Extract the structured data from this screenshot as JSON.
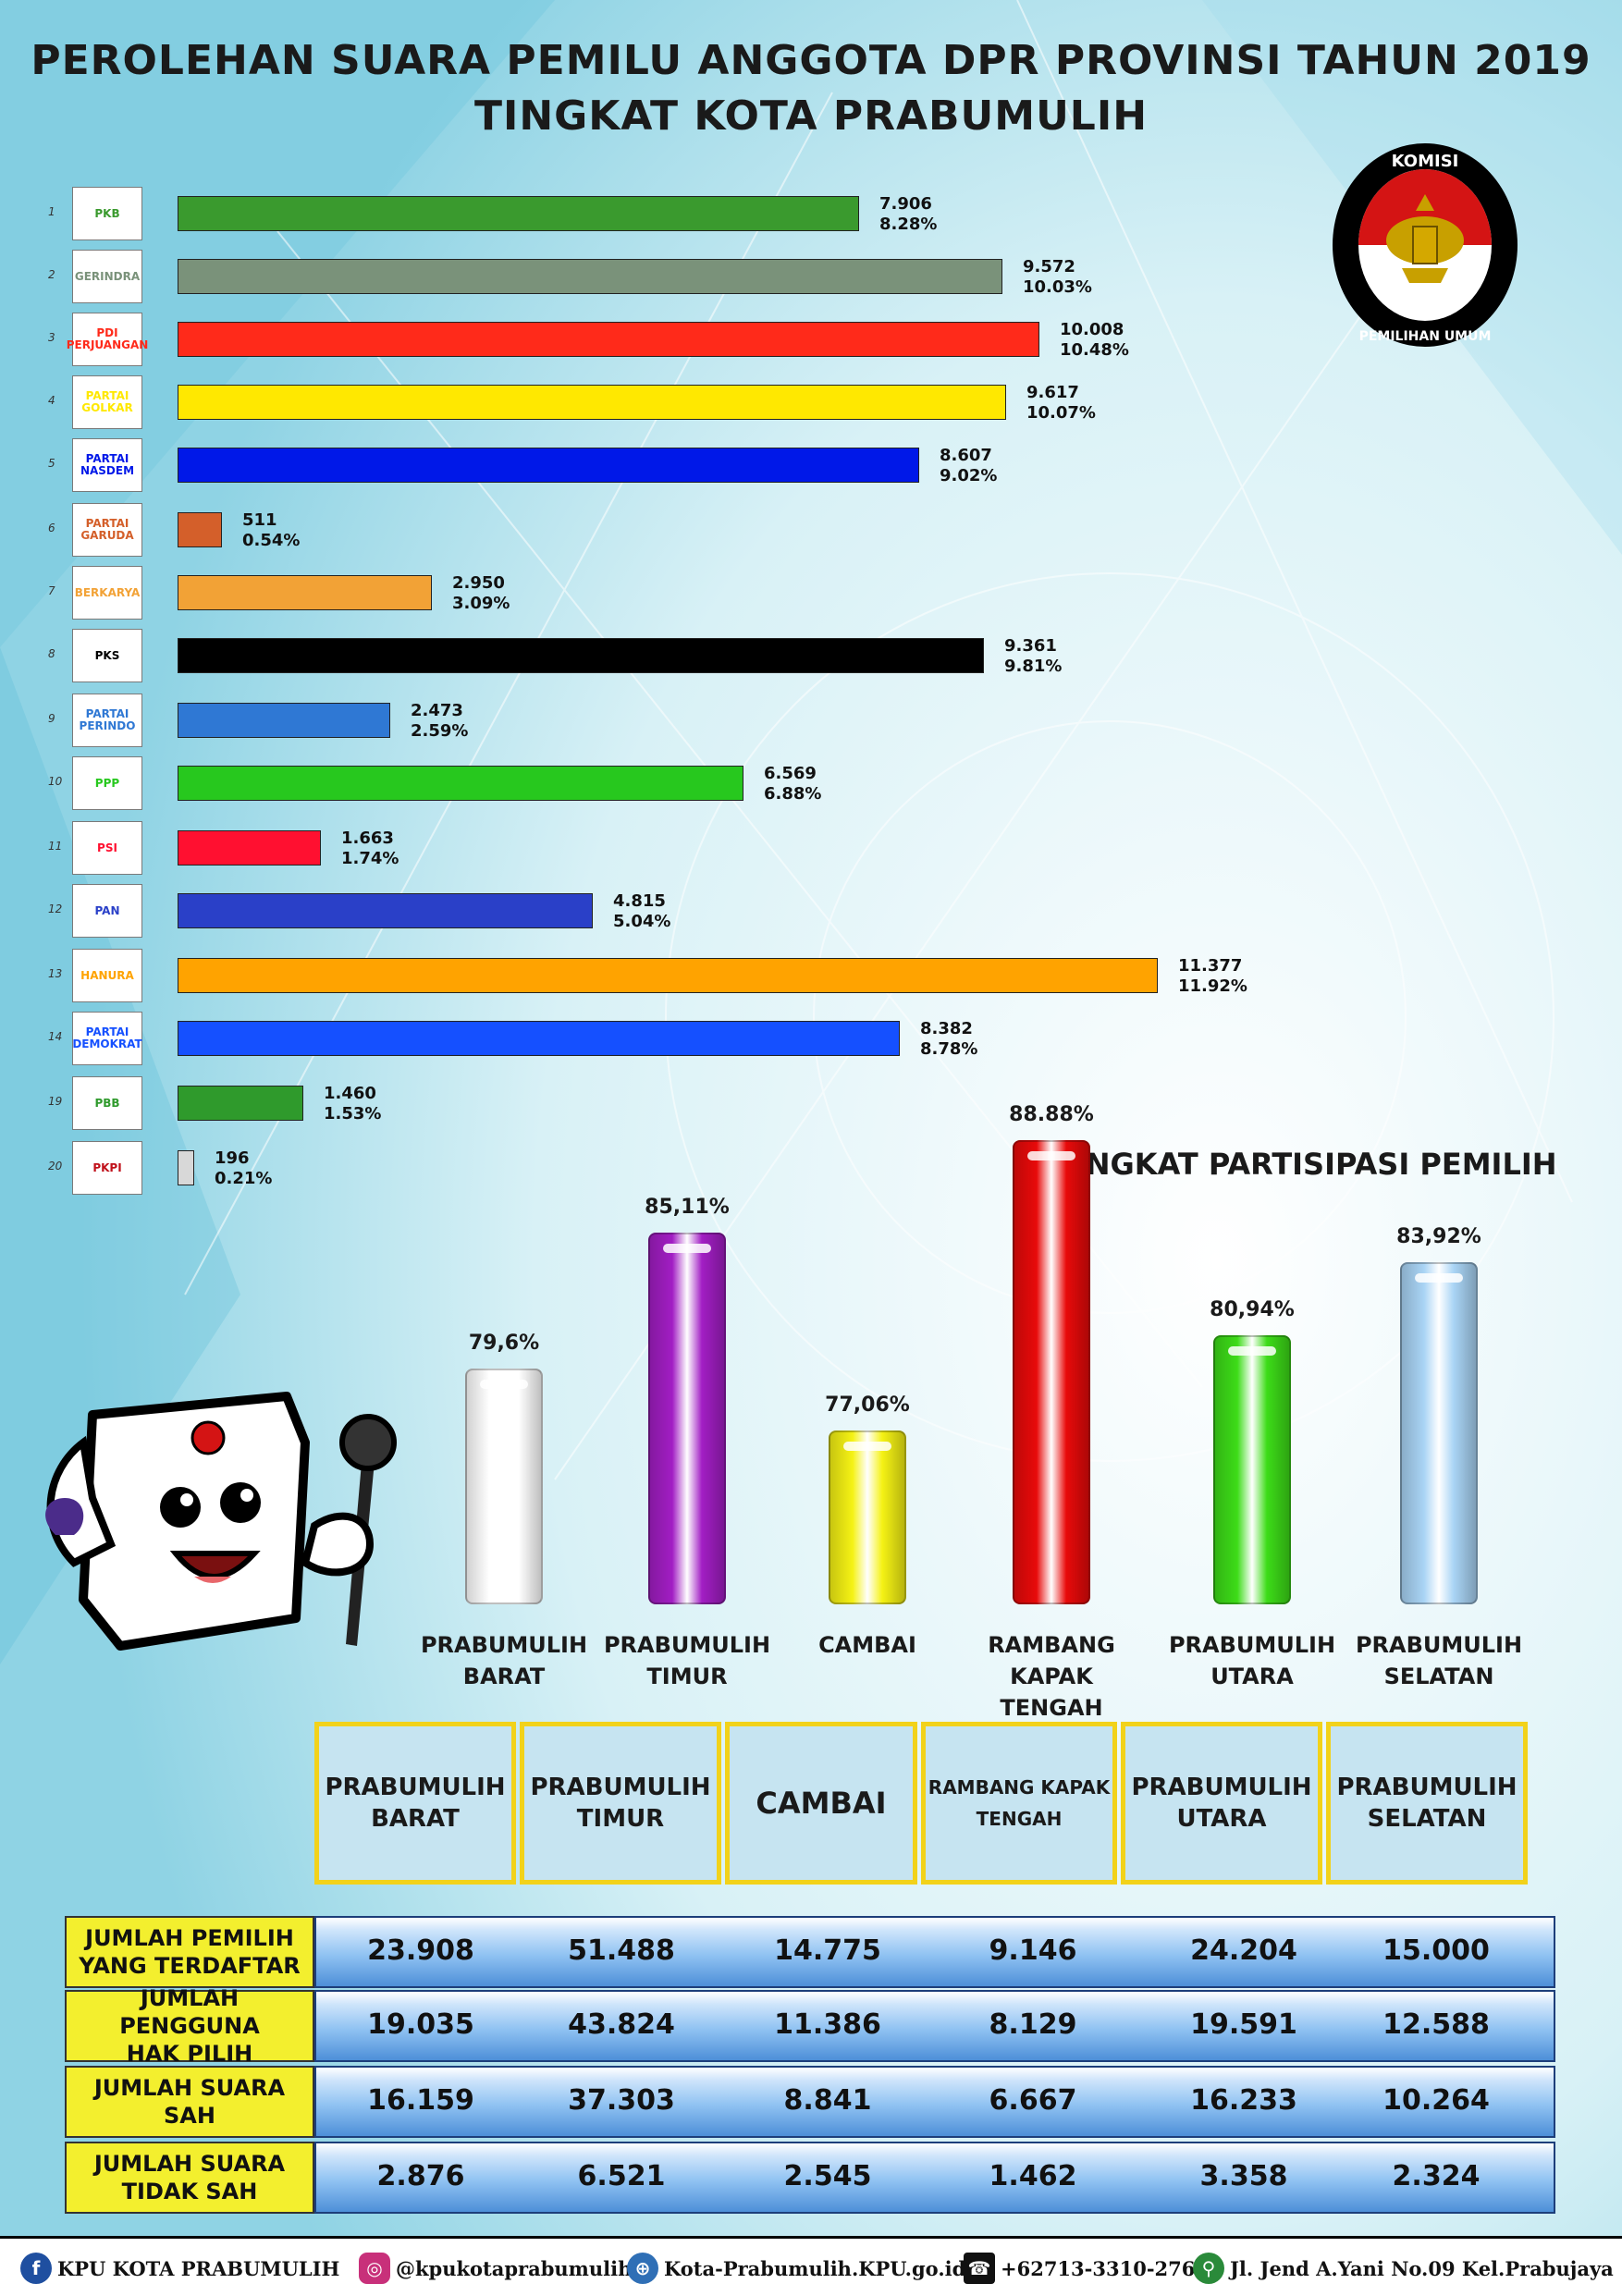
{
  "header": {
    "title_line1": "PEROLEHAN SUARA PEMILU ANGGOTA DPR PROVINSI TAHUN 2019",
    "title_line2": "TINGKAT KOTA PRABUMULIH"
  },
  "kpu_logo": {
    "top_text": "KOMISI",
    "bottom_text": "PEMILIHAN UMUM"
  },
  "chart_data": [
    {
      "type": "bar",
      "orientation": "horizontal",
      "title": "",
      "categories": [
        "PKB",
        "GERINDRA",
        "PDI PERJUANGAN",
        "PARTAI GOLKAR",
        "PARTAI NASDEM",
        "PARTAI GARUDA",
        "BERKARYA",
        "PKS",
        "PARTAI PERINDO",
        "PPP",
        "PSI",
        "PAN",
        "HANURA",
        "PARTAI DEMOKRAT",
        "PBB",
        "PKPI"
      ],
      "rank": [
        "1",
        "2",
        "3",
        "4",
        "5",
        "6",
        "7",
        "8",
        "9",
        "10",
        "11",
        "12",
        "13",
        "14",
        "19",
        "20"
      ],
      "values": [
        7906,
        9572,
        10008,
        9617,
        8607,
        511,
        2950,
        9361,
        2473,
        6569,
        1663,
        4815,
        11377,
        8382,
        1460,
        196
      ],
      "value_labels": [
        "7.906",
        "9.572",
        "10.008",
        "9.617",
        "8.607",
        "511",
        "2.950",
        "9.361",
        "2.473",
        "6.569",
        "1.663",
        "4.815",
        "11.377",
        "8.382",
        "1.460",
        "196"
      ],
      "percent_labels": [
        "8.28%",
        "10.03%",
        "10.48%",
        "10.07%",
        "9.02%",
        "0.54%",
        "3.09%",
        "9.81%",
        "2.59%",
        "6.88%",
        "1.74%",
        "5.04%",
        "11.92%",
        "8.78%",
        "1.53%",
        "0.21%"
      ],
      "colors": [
        "#3a9a2e",
        "#7a927a",
        "#ff2a1a",
        "#ffe800",
        "#0018e8",
        "#d45f2a",
        "#f2a236",
        "#000000",
        "#2f78d4",
        "#27c81e",
        "#ff1030",
        "#2a40c8",
        "#ffa300",
        "#1550ff",
        "#2f9a2c",
        "#d8d8d8"
      ],
      "xlim": [
        0,
        11377
      ]
    },
    {
      "type": "bar",
      "title": "TINGKAT PARTISIPASI PEMILIH",
      "categories": [
        "PRABUMULIH\nBARAT",
        "PRABUMULIH\nTIMUR",
        "CAMBAI",
        "RAMBANG KAPAK\nTENGAH",
        "PRABUMULIH\nUTARA",
        "PRABUMULIH\nSELATAN"
      ],
      "values": [
        79.6,
        85.11,
        77.06,
        88.88,
        80.94,
        83.92
      ],
      "value_labels": [
        "79,6%",
        "85,11%",
        "77,06%",
        "88.88%",
        "80,94%",
        "83,92%"
      ],
      "colors": [
        "#ffffff",
        "#a21ec4",
        "#f5f214",
        "#e80a0a",
        "#3ddc18",
        "#a9d4f5"
      ]
    },
    {
      "type": "table",
      "columns": [
        "PRABUMULIH\nBARAT",
        "PRABUMULIH\nTIMUR",
        "CAMBAI",
        "RAMBANG KAPAK\nTENGAH",
        "PRABUMULIH\nUTARA",
        "PRABUMULIH\nSELATAN"
      ],
      "rows": [
        {
          "label": "JUMLAH PEMILIH\nYANG TERDAFTAR",
          "values": [
            "23.908",
            "51.488",
            "14.775",
            "9.146",
            "24.204",
            "15.000"
          ]
        },
        {
          "label": "JUMLAH PENGGUNA\nHAK PILIH",
          "values": [
            "19.035",
            "43.824",
            "11.386",
            "8.129",
            "19.591",
            "12.588"
          ]
        },
        {
          "label": "JUMLAH SUARA\nSAH",
          "values": [
            "16.159",
            "37.303",
            "8.841",
            "6.667",
            "16.233",
            "10.264"
          ]
        },
        {
          "label": "JUMLAH SUARA\nTIDAK SAH",
          "values": [
            "2.876",
            "6.521",
            "2.545",
            "1.462",
            "3.358",
            "2.324"
          ]
        }
      ]
    }
  ],
  "footer": {
    "facebook": "KPU KOTA PRABUMULIH",
    "instagram": "@kpukotaprabumulih",
    "website": "Kota-Prabumulih.KPU.go.id",
    "phone": "+62713-3310-276",
    "address": "Jl. Jend A.Yani No.09 Kel.Prabujaya"
  }
}
